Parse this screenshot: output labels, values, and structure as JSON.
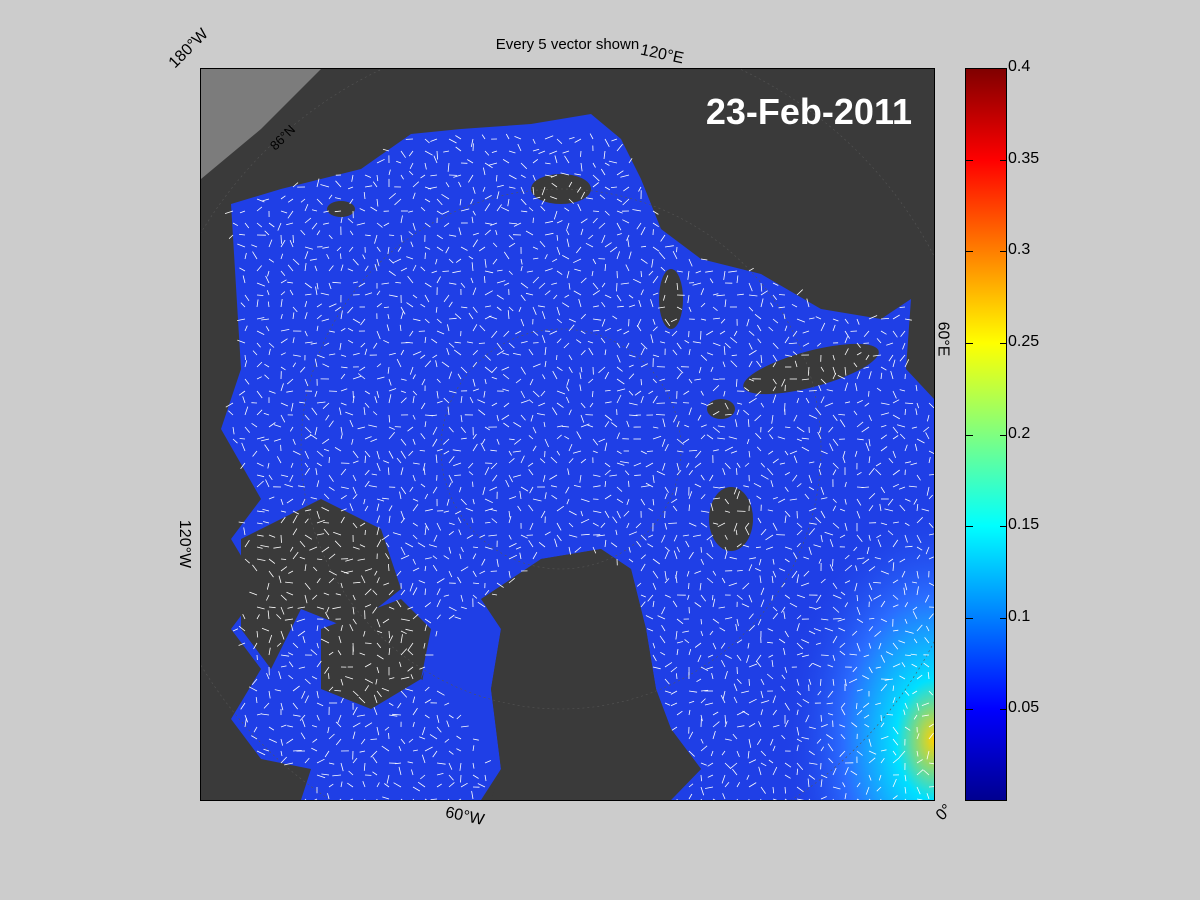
{
  "figure": {
    "title": "Every 5 vector shown",
    "date_label": "23-Feb-2011",
    "labels": {
      "top_left": "180°W",
      "top_right": "120°E",
      "right": "60°E",
      "left": "120°W",
      "bottom": "60°W",
      "bottom_right": "0°",
      "lat_label": "86°N"
    }
  },
  "colorbar": {
    "colormap": "jet",
    "range": [
      0,
      0.4
    ],
    "ticks": [
      "0.4",
      "0.35",
      "0.3",
      "0.25",
      "0.2",
      "0.15",
      "0.1",
      "0.05"
    ]
  },
  "colors": {
    "background": "#cccccc",
    "land": "#3a3a3a",
    "ocean_base": "#1f3fe6",
    "vectors": "#ffffff"
  }
}
